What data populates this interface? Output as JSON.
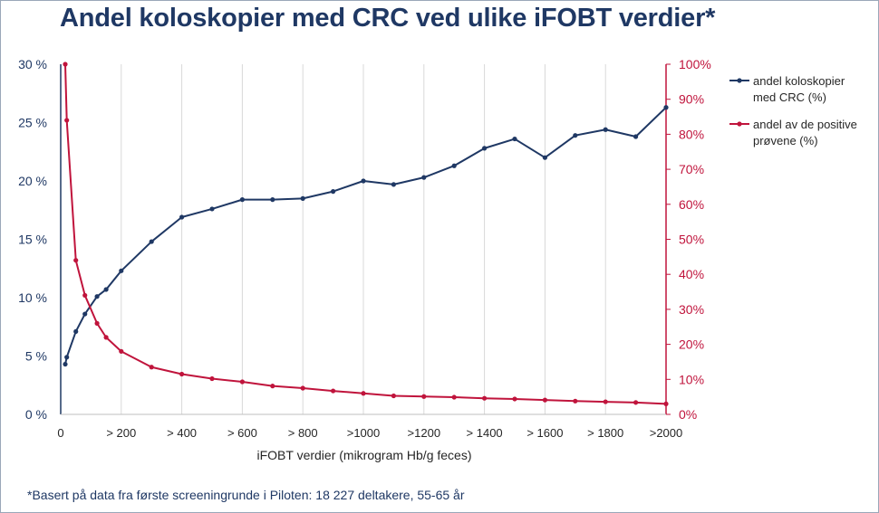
{
  "title": "Andel koloskopier med CRC ved ulike iFOBT verdier*",
  "footnote": "*Basert på data fra første screeningrunde i Piloten: 18 227 deltakere, 55-65 år",
  "colors": {
    "crc": "#1f3864",
    "positive": "#c0143c",
    "grid": "#d9d9d9",
    "axis_text_left": "#1f3864",
    "axis_text_right": "#c0143c"
  },
  "chart_data": {
    "type": "line",
    "title": "Andel koloskopier med CRC ved ulike iFOBT verdier*",
    "xlabel": "iFOBT verdier (mikrogram Hb/g feces)",
    "xlim": [
      0,
      2000
    ],
    "x_ticks": [
      {
        "x": 0,
        "label": "0"
      },
      {
        "x": 200,
        "label": "> 200"
      },
      {
        "x": 400,
        "label": "> 400"
      },
      {
        "x": 600,
        "label": "> 600"
      },
      {
        "x": 800,
        "label": "> 800"
      },
      {
        "x": 1000,
        "label": ">1000"
      },
      {
        "x": 1200,
        "label": ">1200"
      },
      {
        "x": 1400,
        "label": "> 1400"
      },
      {
        "x": 1600,
        "label": "> 1600"
      },
      {
        "x": 1800,
        "label": "> 1800"
      },
      {
        "x": 2000,
        "label": ">2000"
      }
    ],
    "y_left": {
      "ylim": [
        0,
        30
      ],
      "ticks": [
        {
          "v": 0,
          "label": "0 %"
        },
        {
          "v": 5,
          "label": "5 %"
        },
        {
          "v": 10,
          "label": "10 %"
        },
        {
          "v": 15,
          "label": "15 %"
        },
        {
          "v": 20,
          "label": "20 %"
        },
        {
          "v": 25,
          "label": "25 %"
        },
        {
          "v": 30,
          "label": "30 %"
        }
      ]
    },
    "y_right": {
      "ylim": [
        0,
        100
      ],
      "ticks": [
        {
          "v": 0,
          "label": "0%"
        },
        {
          "v": 10,
          "label": "10%"
        },
        {
          "v": 20,
          "label": "20%"
        },
        {
          "v": 30,
          "label": "30%"
        },
        {
          "v": 40,
          "label": "40%"
        },
        {
          "v": 50,
          "label": "50%"
        },
        {
          "v": 60,
          "label": "60%"
        },
        {
          "v": 70,
          "label": "70%"
        },
        {
          "v": 80,
          "label": "80%"
        },
        {
          "v": 90,
          "label": "90%"
        },
        {
          "v": 100,
          "label": "100%"
        }
      ]
    },
    "grid": true,
    "legend": "right",
    "series": [
      {
        "name": "andel koloskopier med CRC  (%)",
        "axis": "left",
        "points": [
          [
            15,
            4.3
          ],
          [
            20,
            4.9
          ],
          [
            50,
            7.1
          ],
          [
            80,
            8.6
          ],
          [
            120,
            10.1
          ],
          [
            150,
            10.7
          ],
          [
            200,
            12.3
          ],
          [
            300,
            14.8
          ],
          [
            400,
            16.9
          ],
          [
            500,
            17.6
          ],
          [
            600,
            18.4
          ],
          [
            700,
            18.4
          ],
          [
            800,
            18.5
          ],
          [
            900,
            19.1
          ],
          [
            1000,
            20.0
          ],
          [
            1100,
            19.7
          ],
          [
            1200,
            20.3
          ],
          [
            1300,
            21.3
          ],
          [
            1400,
            22.8
          ],
          [
            1500,
            23.6
          ],
          [
            1600,
            22.0
          ],
          [
            1700,
            23.9
          ],
          [
            1800,
            24.4
          ],
          [
            1900,
            23.8
          ],
          [
            2000,
            26.3
          ]
        ]
      },
      {
        "name": "andel av de positive prøvene (%)",
        "axis": "right",
        "points": [
          [
            15,
            100
          ],
          [
            20,
            84
          ],
          [
            50,
            44
          ],
          [
            80,
            34
          ],
          [
            120,
            26
          ],
          [
            150,
            22
          ],
          [
            200,
            18
          ],
          [
            300,
            13.5
          ],
          [
            400,
            11.5
          ],
          [
            500,
            10.2
          ],
          [
            600,
            9.3
          ],
          [
            700,
            8.1
          ],
          [
            800,
            7.5
          ],
          [
            900,
            6.7
          ],
          [
            1000,
            6.0
          ],
          [
            1100,
            5.3
          ],
          [
            1200,
            5.1
          ],
          [
            1300,
            4.9
          ],
          [
            1400,
            4.6
          ],
          [
            1500,
            4.4
          ],
          [
            1600,
            4.1
          ],
          [
            1700,
            3.8
          ],
          [
            1800,
            3.6
          ],
          [
            1900,
            3.4
          ],
          [
            2000,
            3.0
          ]
        ]
      }
    ]
  }
}
